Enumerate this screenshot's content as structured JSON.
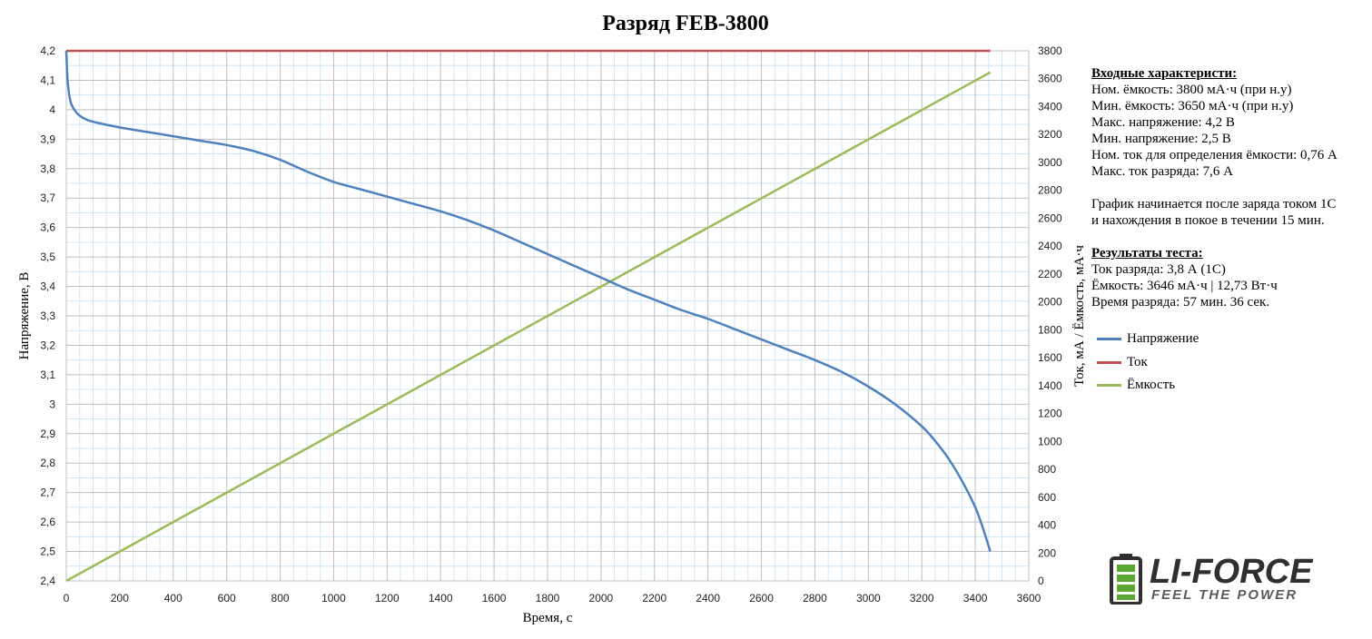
{
  "chart_data": {
    "type": "line",
    "title": "Разряд FEB-3800",
    "xlabel": "Время, с",
    "ylabel_left": "Напряжение, В",
    "ylabel_right": "Ток, мА / Ёмкость, мА·ч",
    "xlim": [
      0,
      3600
    ],
    "xticks": [
      "0",
      "200",
      "400",
      "600",
      "800",
      "1000",
      "1200",
      "1400",
      "1600",
      "1800",
      "2000",
      "2200",
      "2400",
      "2600",
      "2800",
      "3000",
      "3200",
      "3400",
      "3600"
    ],
    "ylim_left": [
      2.4,
      4.2
    ],
    "yticks_left": [
      "2,4",
      "2,5",
      "2,6",
      "2,7",
      "2,8",
      "2,9",
      "3",
      "3,1",
      "3,2",
      "3,3",
      "3,4",
      "3,5",
      "3,6",
      "3,7",
      "3,8",
      "3,9",
      "4",
      "4,1",
      "4,2"
    ],
    "ylim_right": [
      0,
      3800
    ],
    "yticks_right": [
      "0",
      "200",
      "400",
      "600",
      "800",
      "1000",
      "1200",
      "1400",
      "1600",
      "1800",
      "2000",
      "2200",
      "2400",
      "2600",
      "2800",
      "3000",
      "3200",
      "3400",
      "3600",
      "3800"
    ],
    "grid": true,
    "legend_position": "right",
    "series": [
      {
        "name": "Напряжение",
        "axis": "left",
        "color": "#4f81bd",
        "x": [
          0,
          5,
          15,
          30,
          50,
          80,
          120,
          200,
          300,
          400,
          500,
          600,
          700,
          800,
          900,
          1000,
          1100,
          1200,
          1300,
          1400,
          1500,
          1600,
          1700,
          1800,
          1900,
          2000,
          2100,
          2200,
          2300,
          2400,
          2500,
          2600,
          2700,
          2800,
          2900,
          3000,
          3100,
          3200,
          3250,
          3300,
          3350,
          3400,
          3430,
          3456
        ],
        "y": [
          4.2,
          4.1,
          4.03,
          4.0,
          3.98,
          3.965,
          3.955,
          3.94,
          3.925,
          3.91,
          3.895,
          3.88,
          3.86,
          3.83,
          3.79,
          3.755,
          3.73,
          3.705,
          3.68,
          3.655,
          3.625,
          3.59,
          3.55,
          3.51,
          3.47,
          3.43,
          3.39,
          3.355,
          3.32,
          3.29,
          3.255,
          3.22,
          3.185,
          3.15,
          3.11,
          3.06,
          3.0,
          2.925,
          2.875,
          2.815,
          2.74,
          2.65,
          2.575,
          2.5
        ]
      },
      {
        "name": "Ток",
        "axis": "right",
        "color": "#c0504d",
        "x": [
          0,
          3456
        ],
        "y": [
          3800,
          3800
        ]
      },
      {
        "name": "Ёмкость",
        "axis": "right",
        "color": "#9bbb59",
        "x": [
          0,
          3456
        ],
        "y": [
          0,
          3646
        ]
      }
    ]
  },
  "info": {
    "input_heading": "Входные характеристи:",
    "input_lines": [
      "Ном. ёмкость: 3800 мА·ч (при н.у)",
      "Мин. ёмкость: 3650 мА·ч (при н.у)",
      "Макс. напряжение: 4,2 В",
      "Мин. напряжение: 2,5 В",
      "Ном. ток для определения ёмкости: 0,76 А",
      "Макс. ток разряда: 7,6 А"
    ],
    "note_lines": [
      "График начинается после заряда током 1С",
      "и нахождения в покое в течении 15 мин."
    ],
    "results_heading": "Результаты теста:",
    "results_lines": [
      "Ток разряда: 3,8 А (1С)",
      "Ёмкость: 3646 мА·ч | 12,73 Вт·ч",
      "Время разряда: 57 мин. 36 сек."
    ]
  },
  "legend": {
    "items": [
      {
        "label": "Напряжение",
        "color": "#4f81bd"
      },
      {
        "label": "Ток",
        "color": "#c0504d"
      },
      {
        "label": "Ёмкость",
        "color": "#9bbb59"
      }
    ]
  },
  "logo": {
    "brand": "LI-FORCE",
    "tagline": "FEEL THE POWER",
    "icon": "battery-icon",
    "accent_color": "#5aa832"
  }
}
